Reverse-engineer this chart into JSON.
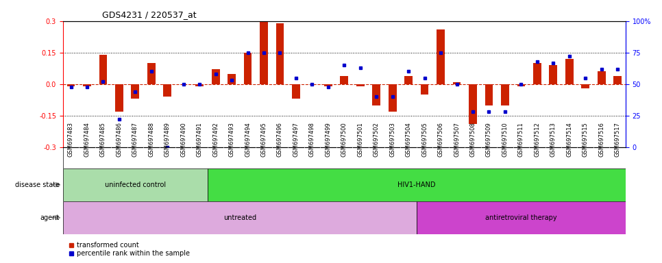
{
  "title": "GDS4231 / 220537_at",
  "samples": [
    "GSM697483",
    "GSM697484",
    "GSM697485",
    "GSM697486",
    "GSM697487",
    "GSM697488",
    "GSM697489",
    "GSM697490",
    "GSM697491",
    "GSM697492",
    "GSM697493",
    "GSM697494",
    "GSM697495",
    "GSM697496",
    "GSM697497",
    "GSM697498",
    "GSM697499",
    "GSM697500",
    "GSM697501",
    "GSM697502",
    "GSM697503",
    "GSM697504",
    "GSM697505",
    "GSM697506",
    "GSM697507",
    "GSM697508",
    "GSM697509",
    "GSM697510",
    "GSM697511",
    "GSM697512",
    "GSM697513",
    "GSM697514",
    "GSM697515",
    "GSM697516",
    "GSM697517"
  ],
  "red_values": [
    -0.01,
    -0.01,
    0.14,
    -0.13,
    -0.07,
    0.1,
    -0.06,
    0.0,
    -0.01,
    0.07,
    0.05,
    0.15,
    0.3,
    0.29,
    -0.07,
    0.0,
    -0.01,
    0.04,
    -0.01,
    -0.1,
    -0.13,
    0.04,
    -0.05,
    0.26,
    0.01,
    -0.19,
    -0.1,
    -0.1,
    -0.01,
    0.1,
    0.09,
    0.12,
    -0.02,
    0.06,
    0.04
  ],
  "blue_values": [
    48,
    48,
    52,
    22,
    44,
    60,
    0,
    50,
    50,
    58,
    53,
    75,
    75,
    75,
    55,
    50,
    48,
    65,
    63,
    40,
    40,
    60,
    55,
    75,
    50,
    28,
    28,
    28,
    50,
    68,
    67,
    72,
    55,
    62,
    62
  ],
  "ylim_left": [
    -0.3,
    0.3
  ],
  "ylim_right": [
    0,
    100
  ],
  "yticks_left": [
    -0.3,
    -0.15,
    0.0,
    0.15,
    0.3
  ],
  "yticks_right": [
    0,
    25,
    50,
    75,
    100
  ],
  "dotted_lines": [
    -0.15,
    0.15
  ],
  "disease_state_groups": [
    {
      "label": "uninfected control",
      "start": 0,
      "end": 9,
      "color": "#aaddaa"
    },
    {
      "label": "HIV1-HAND",
      "start": 9,
      "end": 35,
      "color": "#44dd44"
    }
  ],
  "agent_groups": [
    {
      "label": "untreated",
      "start": 0,
      "end": 22,
      "color": "#ddaadd"
    },
    {
      "label": "antiretroviral therapy",
      "start": 22,
      "end": 35,
      "color": "#cc44cc"
    }
  ],
  "bar_color": "#cc2200",
  "dot_color": "#0000cc",
  "background_color": "#ffffff",
  "tick_bg_color": "#cccccc",
  "legend_items": [
    "transformed count",
    "percentile rank within the sample"
  ],
  "disease_label": "disease state",
  "agent_label": "agent",
  "title_fontsize": 9,
  "axis_fontsize": 7,
  "tick_fontsize": 6,
  "bar_width": 0.5
}
